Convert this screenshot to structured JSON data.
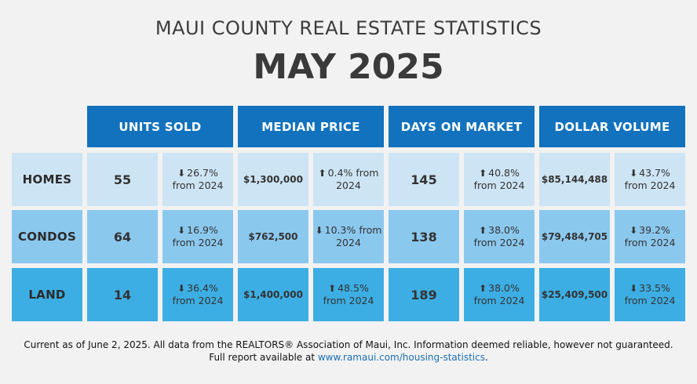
{
  "header": {
    "subtitle": "MAUI COUNTY REAL ESTATE STATISTICS",
    "title": "MAY 2025"
  },
  "columns": [
    "UNITS SOLD",
    "MEDIAN PRICE",
    "DAYS ON MARKET",
    "DOLLAR VOLUME"
  ],
  "rows": [
    {
      "label": "HOMES",
      "units": "55",
      "units_dir": "down",
      "units_change": "26.7%",
      "units_from": "from 2024",
      "price": "$1,300,000",
      "price_dir": "up",
      "price_change": "0.4% from",
      "price_from": "2024",
      "days": "145",
      "days_dir": "up",
      "days_change": "40.8%",
      "days_from": "from 2024",
      "volume": "$85,144,488",
      "volume_dir": "down",
      "volume_change": "43.7%",
      "volume_from": "from 2024"
    },
    {
      "label": "CONDOS",
      "units": "64",
      "units_dir": "down",
      "units_change": "16.9%",
      "units_from": "from 2024",
      "price": "$762,500",
      "price_dir": "down",
      "price_change": "10.3% from",
      "price_from": "2024",
      "days": "138",
      "days_dir": "up",
      "days_change": "38.0%",
      "days_from": "from 2024",
      "volume": "$79,484,705",
      "volume_dir": "down",
      "volume_change": "39.2%",
      "volume_from": "from 2024"
    },
    {
      "label": "LAND",
      "units": "14",
      "units_dir": "down",
      "units_change": "36.4%",
      "units_from": "from 2024",
      "price": "$1,400,000",
      "price_dir": "up",
      "price_change": "48.5%",
      "price_from": "from 2024",
      "days": "189",
      "days_dir": "up",
      "days_change": "38.0%",
      "days_from": "from 2024",
      "volume": "$25,409,500",
      "volume_dir": "down",
      "volume_change": "33.5%",
      "volume_from": "from 2024"
    }
  ],
  "footer": {
    "line1": "Current as of June 2, 2025. All data from the REALTORS® Association of Maui, Inc. Information deemed reliable, however not guaranteed.",
    "line2_prefix": "Full report available at ",
    "link": "www.ramaui.com/housing-statistics",
    "line2_suffix": "."
  },
  "colors": {
    "header_blue": "#1272bd",
    "row_homes": "#cde4f4",
    "row_condos": "#8bc8ee",
    "row_land": "#3daee3"
  },
  "icons": {
    "up": "arrow-up-icon",
    "down": "arrow-down-icon"
  }
}
